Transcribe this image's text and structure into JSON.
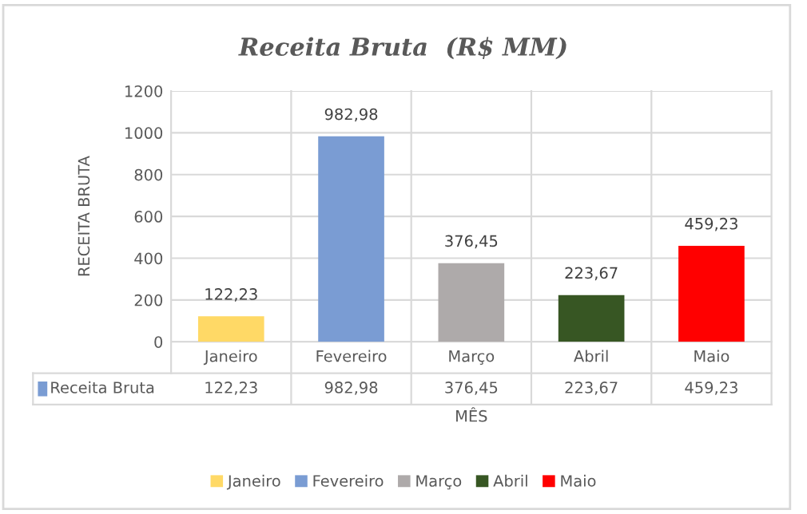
{
  "chart_data": {
    "type": "bar",
    "title": "Receita Bruta  (R$ MM)",
    "xlabel": "MÊS",
    "ylabel": "RECEITA BRUTA",
    "categories": [
      "Janeiro",
      "Fevereiro",
      "Março",
      "Abril",
      "Maio"
    ],
    "series": [
      {
        "name": "Receita Bruta",
        "color": "#7a9cd3",
        "colors": [
          "#ffd966",
          "#7a9cd3",
          "#aeaaaa",
          "#375623",
          "#ff0000"
        ],
        "values": [
          122.23,
          982.98,
          376.45,
          223.67,
          459.23
        ],
        "value_labels": [
          "122,23",
          "982,98",
          "376,45",
          "223,67",
          "459,23"
        ]
      }
    ],
    "ylim": [
      0,
      1200
    ],
    "yticks": [
      0,
      200,
      400,
      600,
      800,
      1000,
      1200
    ],
    "grid": "y",
    "legend": "bottom"
  }
}
